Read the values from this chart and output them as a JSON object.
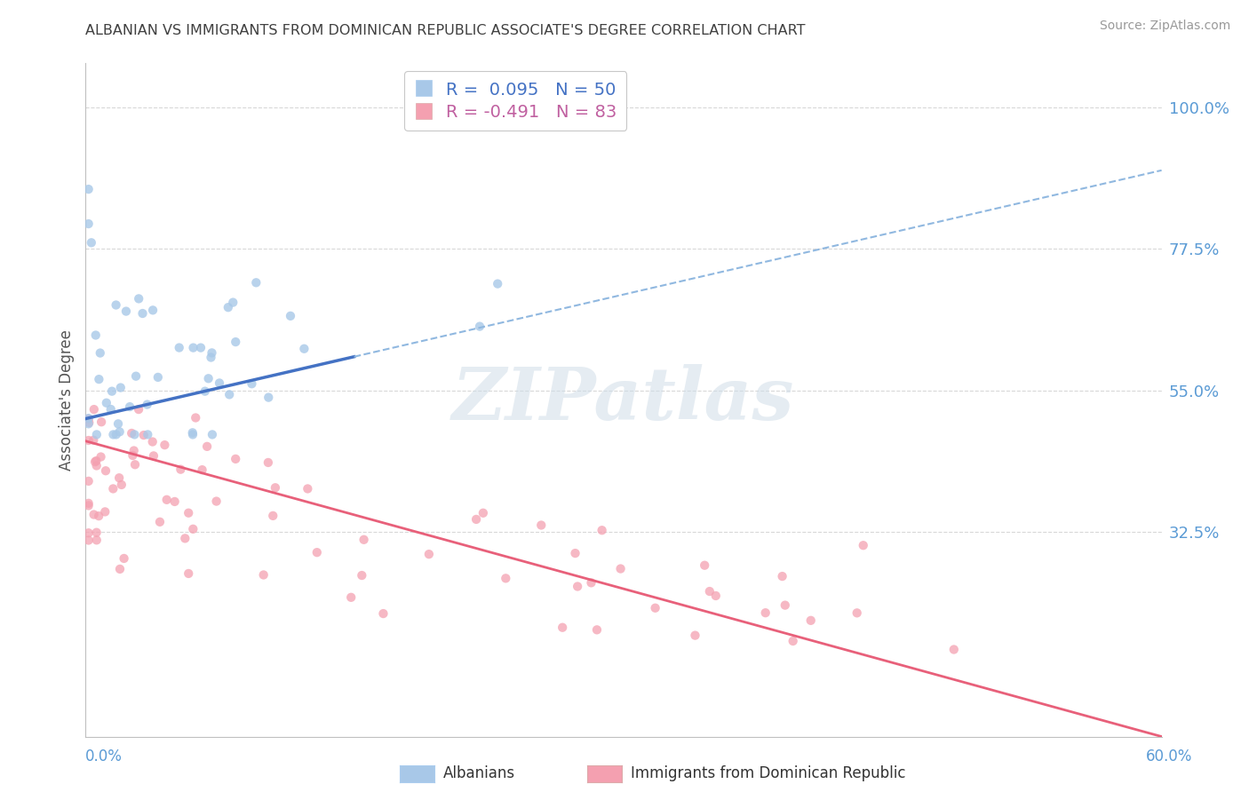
{
  "title": "ALBANIAN VS IMMIGRANTS FROM DOMINICAN REPUBLIC ASSOCIATE'S DEGREE CORRELATION CHART",
  "source": "Source: ZipAtlas.com",
  "ylabel_ticks": [
    32.5,
    55.0,
    77.5,
    100.0
  ],
  "ylabel_label": "Associate's Degree",
  "xmin": 0.0,
  "xmax": 60.0,
  "ymin": 0.0,
  "ymax": 107.0,
  "series1_name": "Albanians",
  "series1_color": "#a8c8e8",
  "series1_line_color": "#4472c4",
  "series2_name": "Immigrants from Dominican Republic",
  "series2_color": "#f4a0b0",
  "series2_line_color": "#e8607a",
  "watermark": "ZIPatlas",
  "background_color": "#ffffff",
  "grid_color": "#d8d8d8",
  "title_color": "#404040",
  "right_label_color": "#5b9bd5",
  "bottom_label_color": "#5b9bd5",
  "legend_text_color1": "#4472c4",
  "legend_text_color2": "#c060a0"
}
